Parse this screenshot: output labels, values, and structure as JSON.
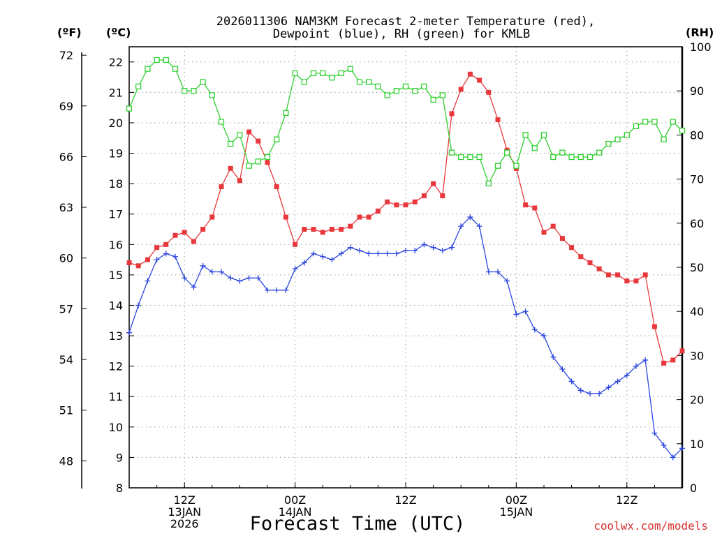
{
  "chart_data": {
    "type": "line",
    "title_lines": [
      "2026011306 NAM3KM Forecast 2-meter Temperature (red),",
      "Dewpoint (blue), RH (green) for KMLB"
    ],
    "xlabel": "Forecast Time (UTC)",
    "credit": "coolwx.com/models",
    "units": {
      "f": "(ºF)",
      "c": "(ºC)",
      "rh": "(RH)"
    },
    "x_range_hours": [
      0,
      60
    ],
    "x_ticks": [
      {
        "hour": 6,
        "lines": [
          "12Z",
          "13JAN",
          "2026"
        ]
      },
      {
        "hour": 18,
        "lines": [
          "00Z",
          "14JAN"
        ]
      },
      {
        "hour": 30,
        "lines": [
          "12Z"
        ]
      },
      {
        "hour": 42,
        "lines": [
          "00Z",
          "15JAN"
        ]
      },
      {
        "hour": 54,
        "lines": [
          "12Z"
        ]
      }
    ],
    "ylim_c": [
      8,
      22.5
    ],
    "ylim_rh": [
      0,
      100
    ],
    "yticks_c": [
      8,
      9,
      10,
      11,
      12,
      13,
      14,
      15,
      16,
      17,
      18,
      19,
      20,
      21,
      22
    ],
    "yticks_f": [
      48,
      51,
      54,
      57,
      60,
      63,
      66,
      69,
      72
    ],
    "yticks_rh": [
      0,
      10,
      20,
      30,
      40,
      50,
      60,
      70,
      80,
      90,
      100
    ],
    "grid": true,
    "x_hours": [
      0,
      1,
      2,
      3,
      4,
      5,
      6,
      7,
      8,
      9,
      10,
      11,
      12,
      13,
      14,
      15,
      16,
      17,
      18,
      19,
      20,
      21,
      22,
      23,
      24,
      25,
      26,
      27,
      28,
      29,
      30,
      31,
      32,
      33,
      34,
      35,
      36,
      37,
      38,
      39,
      40,
      41,
      42,
      43,
      44,
      45,
      46,
      47,
      48,
      49,
      50,
      51,
      52,
      53,
      54,
      55,
      56,
      57,
      58,
      59,
      60
    ],
    "series": [
      {
        "name": "Temperature",
        "axis": "c",
        "color": "#e8383c",
        "marker": "filled-square",
        "values": [
          15.4,
          15.3,
          15.5,
          15.9,
          16.0,
          16.3,
          16.4,
          16.1,
          16.5,
          16.9,
          17.9,
          18.5,
          18.1,
          19.7,
          19.4,
          18.7,
          17.9,
          16.9,
          16.0,
          16.5,
          16.5,
          16.4,
          16.5,
          16.5,
          16.6,
          16.9,
          16.9,
          17.1,
          17.4,
          17.3,
          17.3,
          17.4,
          17.6,
          18.0,
          17.6,
          20.3,
          21.1,
          21.6,
          21.4,
          21.0,
          20.1,
          19.1,
          18.5,
          17.3,
          17.2,
          16.4,
          16.6,
          16.2,
          15.9,
          15.6,
          15.4,
          15.2,
          15.0,
          15.0,
          14.8,
          14.8,
          15.0,
          13.3,
          12.1,
          12.2,
          12.5
        ]
      },
      {
        "name": "Dewpoint",
        "axis": "c",
        "color": "#2c46e0",
        "marker": "plus",
        "values": [
          13.1,
          14.0,
          14.8,
          15.5,
          15.7,
          15.6,
          14.9,
          14.6,
          15.3,
          15.1,
          15.1,
          14.9,
          14.8,
          14.9,
          14.9,
          14.5,
          14.5,
          14.5,
          15.2,
          15.4,
          15.7,
          15.6,
          15.5,
          15.7,
          15.9,
          15.8,
          15.7,
          15.7,
          15.7,
          15.7,
          15.8,
          15.8,
          16.0,
          15.9,
          15.8,
          15.9,
          16.6,
          16.9,
          16.6,
          15.1,
          15.1,
          14.8,
          13.7,
          13.8,
          13.2,
          13.0,
          12.3,
          11.9,
          11.5,
          11.2,
          11.1,
          11.1,
          11.3,
          11.5,
          11.7,
          12.0,
          12.2,
          9.8,
          9.4,
          9.0,
          9.3
        ]
      },
      {
        "name": "RH",
        "axis": "rh",
        "color": "#30d030",
        "marker": "open-square",
        "values": [
          86,
          91,
          95,
          97,
          97,
          95,
          90,
          90,
          92,
          89,
          83,
          78,
          80,
          73,
          74,
          75,
          79,
          85,
          94,
          92,
          94,
          94,
          93,
          94,
          95,
          92,
          92,
          91,
          89,
          90,
          91,
          90,
          91,
          88,
          89,
          76,
          75,
          75,
          75,
          69,
          73,
          76,
          73,
          80,
          77,
          80,
          75,
          76,
          75,
          75,
          75,
          76,
          78,
          79,
          80,
          82,
          83,
          83,
          79,
          83,
          81
        ]
      }
    ]
  }
}
